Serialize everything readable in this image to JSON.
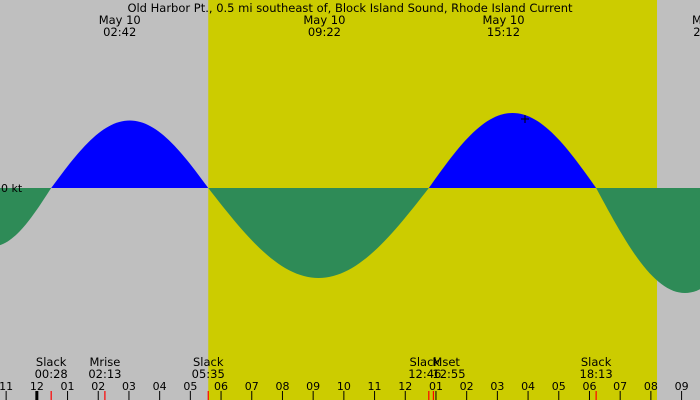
{
  "chart_data": {
    "type": "area",
    "title": "Old Harbor Pt., 0.5 mi southeast of, Block Island Sound, Rhode Island Current",
    "zero_label": "0 kt",
    "colors": {
      "background": "#bfbfbf",
      "daylight": "#cccc00",
      "flood": "#0000ff",
      "ebb": "#2e8b57",
      "moon_marker": "#ff0000"
    },
    "xlim_hours": [
      -1.2,
      21.6
    ],
    "daylight": {
      "start": 5.583,
      "end": 20.2
    },
    "series": [
      {
        "segments": [
          {
            "start": -3.4,
            "end": 0.467,
            "amplitude": -0.78
          },
          {
            "start": 0.467,
            "end": 5.583,
            "amplitude": 0.9
          },
          {
            "start": 5.583,
            "end": 12.767,
            "amplitude": -1.2
          },
          {
            "start": 12.767,
            "end": 18.217,
            "amplitude": 1.0
          },
          {
            "start": 18.217,
            "end": 24.0,
            "amplitude": -1.4
          }
        ]
      }
    ],
    "top_labels": [
      {
        "day": "May 10",
        "time": "02:42",
        "hour": 2.7
      },
      {
        "day": "May 10",
        "time": "09:22",
        "hour": 9.367
      },
      {
        "day": "May 10",
        "time": "15:12",
        "hour": 15.2
      },
      {
        "day": "M",
        "time": "2",
        "hour": 21.5
      }
    ],
    "events": [
      {
        "name": "Slack",
        "time": "00:28",
        "hour": 0.467
      },
      {
        "name": "Mrise",
        "time": "02:13",
        "hour": 2.217
      },
      {
        "name": "Slack",
        "time": "05:35",
        "hour": 5.583
      },
      {
        "name": "Slack",
        "time": "12:46",
        "hour": 12.767
      },
      {
        "name": "Mset",
        "time": "12:55",
        "hour": 12.917
      },
      {
        "name": "Slack",
        "time": "18:13",
        "hour": 18.217
      }
    ],
    "moon_marks": [
      2.217,
      12.917
    ],
    "current_time_mark": {
      "hour": 15.9,
      "value": 0.92
    },
    "x_ticks": [
      {
        "hour": -1,
        "label": "11"
      },
      {
        "hour": 0,
        "label": "12"
      },
      {
        "hour": 1,
        "label": "01"
      },
      {
        "hour": 2,
        "label": "02"
      },
      {
        "hour": 3,
        "label": "03"
      },
      {
        "hour": 4,
        "label": "04"
      },
      {
        "hour": 5,
        "label": "05"
      },
      {
        "hour": 6,
        "label": "06"
      },
      {
        "hour": 7,
        "label": "07"
      },
      {
        "hour": 8,
        "label": "08"
      },
      {
        "hour": 9,
        "label": "09"
      },
      {
        "hour": 10,
        "label": "10"
      },
      {
        "hour": 11,
        "label": "11"
      },
      {
        "hour": 12,
        "label": "12"
      },
      {
        "hour": 13,
        "label": "01"
      },
      {
        "hour": 14,
        "label": "02"
      },
      {
        "hour": 15,
        "label": "03"
      },
      {
        "hour": 16,
        "label": "04"
      },
      {
        "hour": 17,
        "label": "05"
      },
      {
        "hour": 18,
        "label": "06"
      },
      {
        "hour": 19,
        "label": "07"
      },
      {
        "hour": 20,
        "label": "08"
      },
      {
        "hour": 21,
        "label": "09"
      }
    ]
  }
}
